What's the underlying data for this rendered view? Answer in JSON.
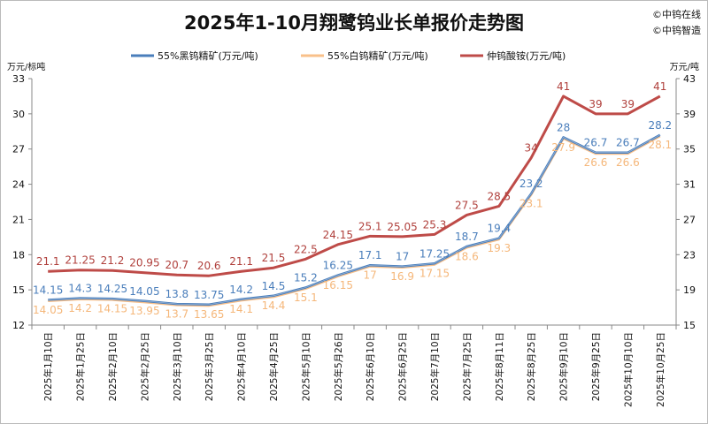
{
  "watermarks": [
    "©中钨在线",
    "©中钨智造"
  ],
  "chart_data": {
    "type": "line",
    "title": "2025年1-10月翔鹭钨业长单报价走势图",
    "y_left_label": "万元/标吨",
    "y_right_label": "万元/吨",
    "y_left": {
      "min": 12,
      "max": 33,
      "step": 3
    },
    "y_right": {
      "min": 15,
      "max": 43,
      "step": 4
    },
    "legend_position": "top",
    "grid": false,
    "categories": [
      "2025年1月10日",
      "2025年1月25日",
      "2025年2月10日",
      "2025年2月25日",
      "2025年3月10日",
      "2025年3月25日",
      "2025年4月10日",
      "2025年4月25日",
      "2025年5月10日",
      "2025年5月26日",
      "2025年6月10日",
      "2025年6月25日",
      "2025年7月10日",
      "2025年7月25日",
      "2025年8月11日",
      "2025年8月25日",
      "2025年9月10日",
      "2025年9月25日",
      "2025年10月10日",
      "2025年10月25日"
    ],
    "series": [
      {
        "name": "55%黑钨精矿(万元/吨)",
        "axis": "left",
        "color": "#4a7ebb",
        "label_color": "#4a7ebb",
        "values": [
          14.15,
          14.3,
          14.25,
          14.05,
          13.8,
          13.75,
          14.2,
          14.5,
          15.2,
          16.25,
          17.1,
          17,
          17.25,
          18.7,
          19.4,
          23.2,
          28,
          26.7,
          26.7,
          28.2
        ]
      },
      {
        "name": "55%白钨精矿(万元/吨)",
        "axis": "left",
        "color": "#f9c08a",
        "label_color": "#f5b77a",
        "values": [
          14.05,
          14.2,
          14.15,
          13.95,
          13.7,
          13.65,
          14.1,
          14.4,
          15.1,
          16.15,
          17,
          16.9,
          17.15,
          18.6,
          19.3,
          23.1,
          27.9,
          26.6,
          26.6,
          28.1
        ]
      },
      {
        "name": "仲钨酸铵(万元/吨)",
        "axis": "right",
        "color": "#be4b48",
        "label_color": "#b0403c",
        "values": [
          21.1,
          21.25,
          21.2,
          20.95,
          20.7,
          20.6,
          21.1,
          21.5,
          22.5,
          24.15,
          25.1,
          25.05,
          25.3,
          27.5,
          28.5,
          34,
          41,
          39,
          39,
          41
        ]
      }
    ]
  }
}
